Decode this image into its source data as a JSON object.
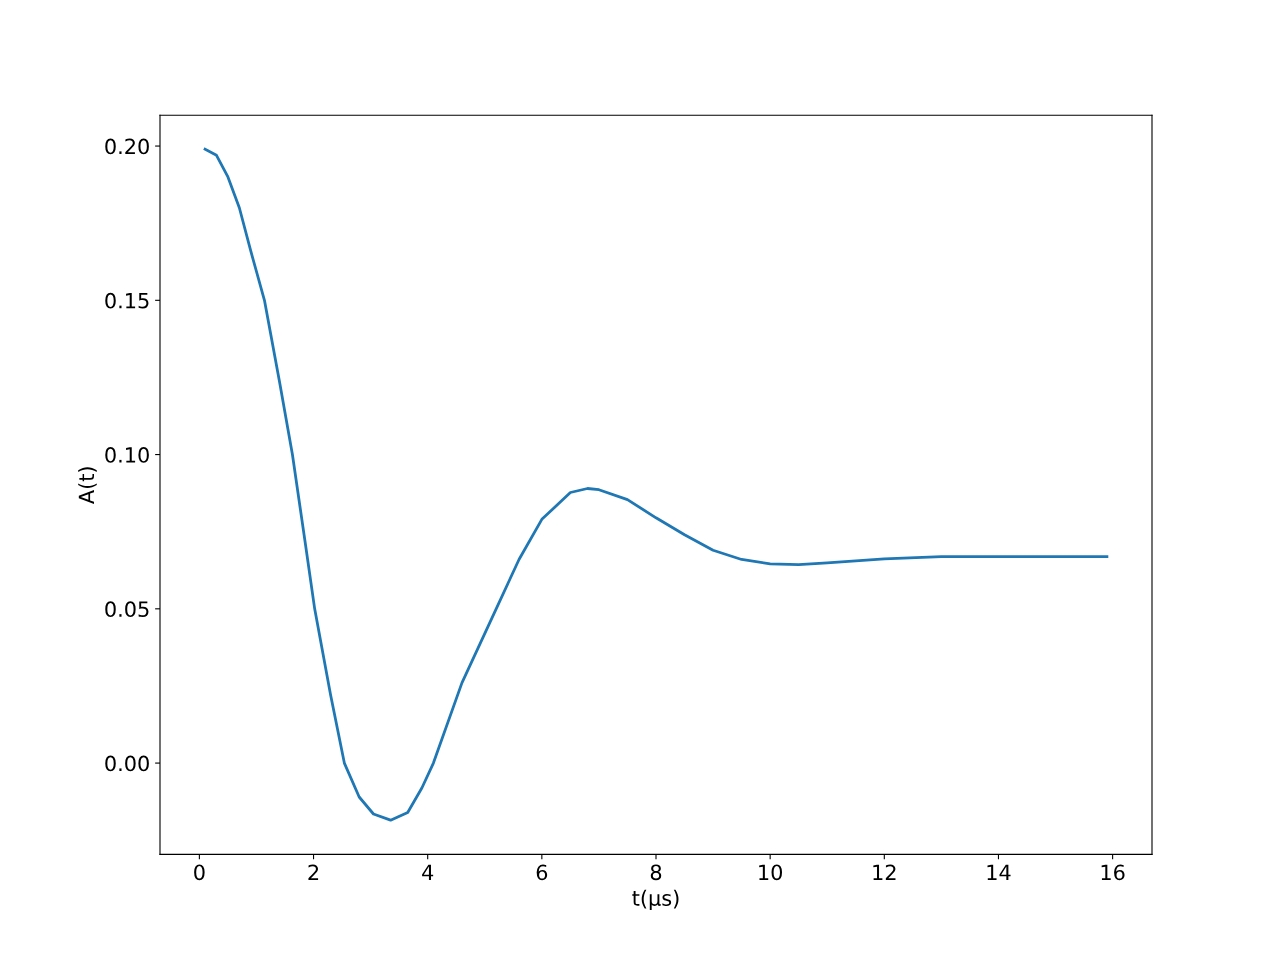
{
  "chart_data": {
    "type": "line",
    "xlabel": "t(μs)",
    "ylabel": "A(t)",
    "xlim": [
      -0.69,
      16.69
    ],
    "ylim": [
      -0.0296,
      0.21
    ],
    "xticks": [
      0,
      2,
      4,
      6,
      8,
      10,
      12,
      14,
      16
    ],
    "yticks": [
      {
        "value": 0,
        "label": "0.00"
      },
      {
        "value": 0.05,
        "label": "0.05"
      },
      {
        "value": 0.1,
        "label": "0.10"
      },
      {
        "value": 0.15,
        "label": "0.15"
      },
      {
        "value": 0.2,
        "label": "0.20"
      }
    ],
    "grid": false,
    "marker": "none",
    "line_style": "solid",
    "series": [
      {
        "color": "#1f77b4",
        "x": [
          0.1,
          0.3,
          0.5,
          0.7,
          0.9,
          1.14,
          1.4,
          1.63,
          1.85,
          2.02,
          2.3,
          2.54,
          2.8,
          3.05,
          3.35,
          3.65,
          3.9,
          4.1,
          4.6,
          5.2,
          5.6,
          6.0,
          6.5,
          6.8,
          7.0,
          7.5,
          8.0,
          8.5,
          9.0,
          9.5,
          10.0,
          10.5,
          11.0,
          12.0,
          13.0,
          14.0,
          15.0,
          15.9
        ],
        "values": [
          0.199,
          0.197,
          0.19,
          0.18,
          0.166,
          0.15,
          0.124,
          0.1,
          0.072,
          0.05,
          0.022,
          0.0,
          -0.011,
          -0.0165,
          -0.0185,
          -0.016,
          -0.008,
          0.0,
          0.026,
          0.05,
          0.066,
          0.079,
          0.0877,
          0.089,
          0.0886,
          0.0854,
          0.0795,
          0.074,
          0.069,
          0.066,
          0.0646,
          0.0643,
          0.0649,
          0.0662,
          0.0669,
          0.0669,
          0.0669,
          0.0669
        ]
      }
    ]
  }
}
